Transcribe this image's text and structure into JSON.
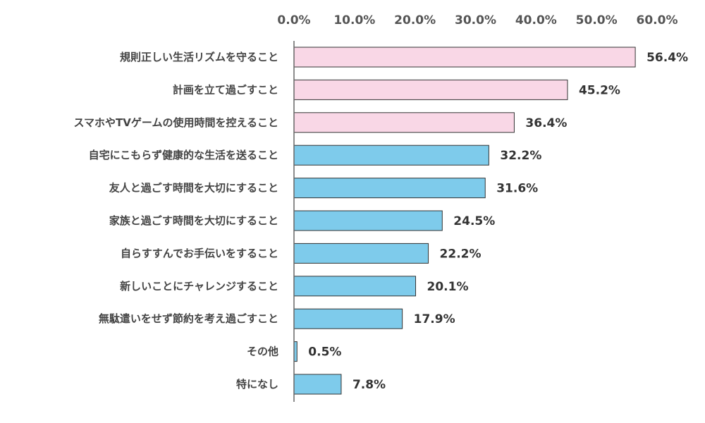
{
  "chart_data": {
    "type": "bar",
    "orientation": "horizontal",
    "xlim": [
      0,
      60
    ],
    "x_ticks": [
      "0.0%",
      "10.0%",
      "20.0%",
      "30.0%",
      "40.0%",
      "50.0%",
      "60.0%"
    ],
    "x_tick_values": [
      0,
      10,
      20,
      30,
      40,
      50,
      60
    ],
    "axis_position": "top",
    "grid": false,
    "categories": [
      "規則正しい生活リズムを守ること",
      "計画を立て過ごすこと",
      "スマホやTVゲームの使用時間を控えること",
      "自宅にこもらず健康的な生活を送ること",
      "友人と過ごす時間を大切にすること",
      "家族と過ごす時間を大切にすること",
      "自らすすんでお手伝いをすること",
      "新しいことにチャレンジすること",
      "無駄遣いをせず節約を考え過ごすこと",
      "その他",
      "特になし"
    ],
    "values": [
      56.4,
      45.2,
      36.4,
      32.2,
      31.6,
      24.5,
      22.2,
      20.1,
      17.9,
      0.5,
      7.8
    ],
    "value_labels": [
      "56.4%",
      "45.2%",
      "36.4%",
      "32.2%",
      "31.6%",
      "24.5%",
      "22.2%",
      "20.1%",
      "17.9%",
      "0.5%",
      "7.8%"
    ],
    "highlight_count": 3,
    "colors": {
      "highlight": "#f9d7e6",
      "normal": "#7ecbeb",
      "bar_border": "#333333",
      "axis": "#666666"
    }
  }
}
